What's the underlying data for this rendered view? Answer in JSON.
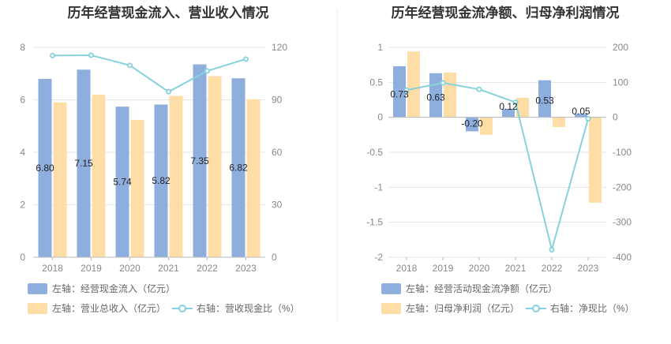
{
  "colors": {
    "bar_primary": "#8eaedd",
    "bar_secondary": "#ffdda6",
    "line": "#86d2dc",
    "grid": "#e5e5e5",
    "divider": "#eeeeee"
  },
  "chart_data": [
    {
      "type": "bar",
      "title": "历年经营现金流入、营业收入情况",
      "categories": [
        "2018",
        "2019",
        "2020",
        "2021",
        "2022",
        "2023"
      ],
      "left_axis": {
        "min": 0,
        "max": 8,
        "ticks": [
          "0",
          "2",
          "4",
          "6",
          "8"
        ]
      },
      "right_axis": {
        "min": 0,
        "max": 120,
        "ticks": [
          "0",
          "30",
          "60",
          "90",
          "120"
        ]
      },
      "series": [
        {
          "name": "左轴：经营现金流入（亿元）",
          "type": "bar",
          "axis": "left",
          "values": [
            6.8,
            7.15,
            5.74,
            5.82,
            7.35,
            6.82
          ],
          "labels": [
            "6.80",
            "7.15",
            "5.74",
            "5.82",
            "7.35",
            "6.82"
          ]
        },
        {
          "name": "左轴：营业总收入（亿元）",
          "type": "bar",
          "axis": "left",
          "values": [
            5.9,
            6.2,
            5.23,
            6.15,
            6.9,
            6.02
          ]
        },
        {
          "name": "右轴：营收现金比（%）",
          "type": "line",
          "axis": "right",
          "values": [
            115.3,
            115.5,
            109.7,
            94.6,
            106.5,
            113.3
          ]
        }
      ],
      "legend": [
        "左轴：经营现金流入（亿元）",
        "左轴：营业总收入（亿元）",
        "右轴：营收现金比（%）"
      ]
    },
    {
      "type": "bar",
      "title": "历年经营现金流净额、归母净利润情况",
      "categories": [
        "2018",
        "2019",
        "2020",
        "2021",
        "2022",
        "2023"
      ],
      "left_axis": {
        "min": -2,
        "max": 1,
        "ticks": [
          "-2",
          "-1.5",
          "-1",
          "-0.5",
          "0",
          "0.5",
          "1"
        ]
      },
      "right_axis": {
        "min": -400,
        "max": 200,
        "ticks": [
          "-400",
          "-300",
          "-200",
          "-100",
          "0",
          "100",
          "200"
        ]
      },
      "series": [
        {
          "name": "左轴：经营活动现金流净额（亿元）",
          "type": "bar",
          "axis": "left",
          "values": [
            0.73,
            0.63,
            -0.2,
            0.12,
            0.53,
            0.05
          ],
          "labels": [
            "0.73",
            "0.63",
            "-0.20",
            "0.12",
            "0.53",
            "0.05"
          ]
        },
        {
          "name": "左轴：归母净利润（亿元）",
          "type": "bar",
          "axis": "left",
          "values": [
            0.94,
            0.64,
            -0.25,
            0.28,
            -0.14,
            -1.22
          ]
        },
        {
          "name": "右轴：净现比（%）",
          "type": "line",
          "axis": "right",
          "values": [
            77.7,
            98.4,
            80.0,
            42.9,
            -378.6,
            -4.1
          ]
        }
      ],
      "legend": [
        "左轴：经营活动现金流净额（亿元）",
        "左轴：归母净利润（亿元）",
        "右轴：净现比（%）"
      ]
    }
  ]
}
